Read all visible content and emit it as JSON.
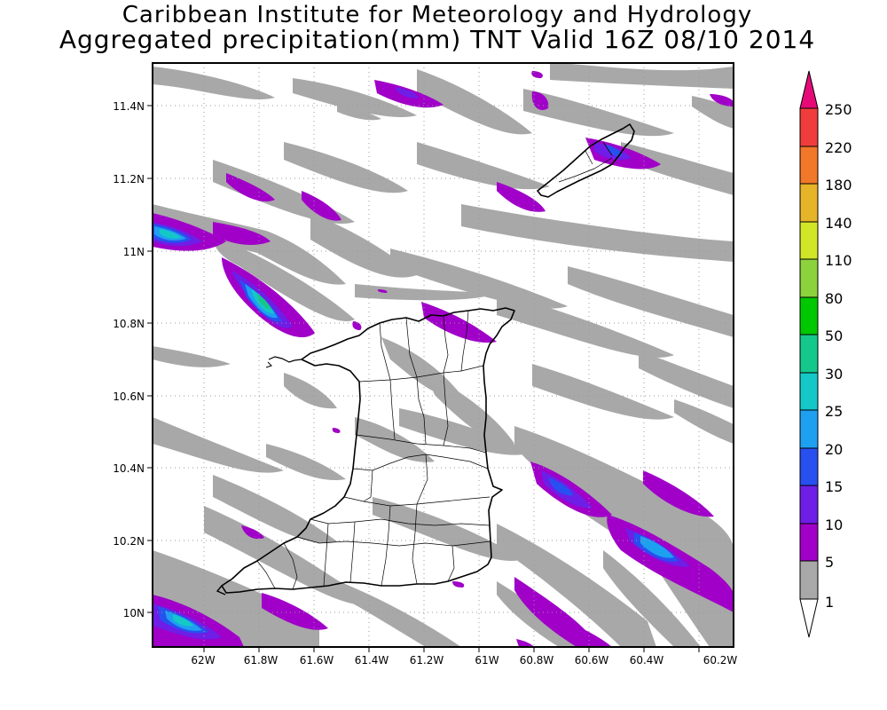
{
  "title": {
    "line1": "Caribbean Institute for Meteorology and Hydrology",
    "line2": "Aggregated precipitation(mm) TNT Valid 16Z 08/10 2014"
  },
  "axes": {
    "lon_labels": [
      "62W",
      "61.8W",
      "61.6W",
      "61.4W",
      "61.2W",
      "61W",
      "60.8W",
      "60.6W",
      "60.4W",
      "60.2W"
    ],
    "lat_labels": [
      "11.4N",
      "11.2N",
      "11N",
      "10.8N",
      "10.6N",
      "10.4N",
      "10.2N",
      "10N"
    ]
  },
  "colorbar": {
    "labels": [
      "1",
      "5",
      "10",
      "15",
      "20",
      "25",
      "30",
      "50",
      "80",
      "110",
      "140",
      "180",
      "220",
      "250"
    ],
    "colors": [
      "#ffffff",
      "#a8a8a8",
      "#a000c8",
      "#6e1ee6",
      "#2850f0",
      "#1ea0f0",
      "#14c8c8",
      "#14c88c",
      "#00c800",
      "#8cd23c",
      "#d2e628",
      "#e6b428",
      "#f07828",
      "#f03c3c",
      "#e60a78"
    ]
  },
  "colors": {
    "level_5": "#a8a8a8",
    "level_10": "#a000c8",
    "level_15": "#6e1ee6",
    "level_20": "#2850f0",
    "level_25": "#1ea0f0",
    "level_30": "#14c8c8",
    "level_50": "#14c88c"
  }
}
